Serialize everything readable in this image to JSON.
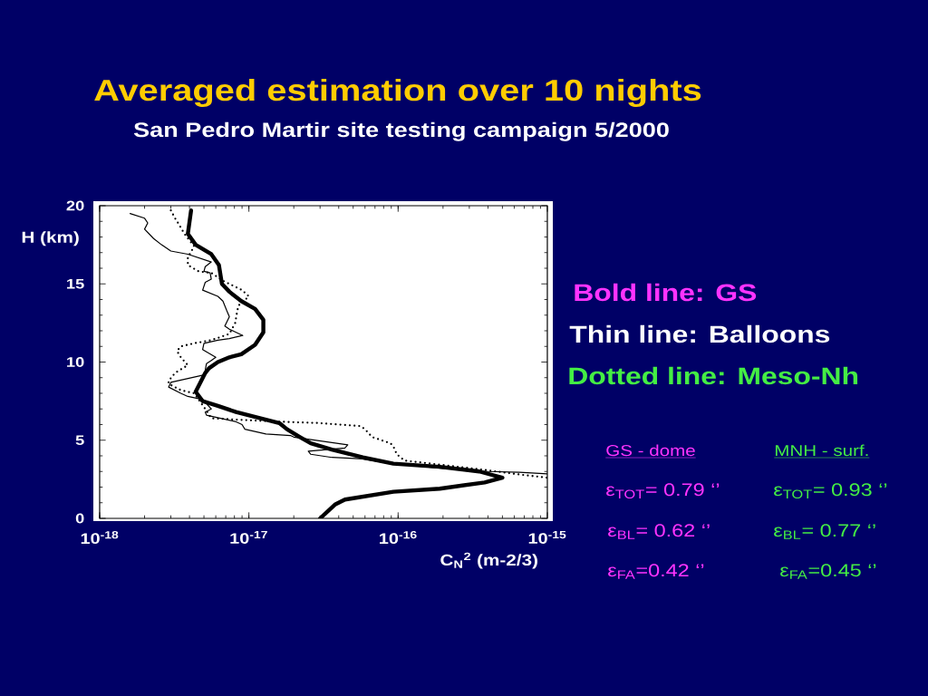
{
  "chart_data": {
    "type": "line",
    "title": "Averaged estimation over 10 nights",
    "subtitle": "San Pedro Martir  site testing campaign  5/2000",
    "xlabel": "C$_{N}$$^{2}$  (m-2/3)",
    "ylabel": "H (km)",
    "log": "x",
    "marker": "none",
    "xlim": [
      1e-18,
      1e-15
    ],
    "ylim": [
      0,
      20
    ],
    "xticks": [
      {
        "value": 1e-18,
        "label": "10$^{-18}$"
      },
      {
        "value": 1e-17,
        "label": "10$^{-17}$"
      },
      {
        "value": 1e-16,
        "label": "10$^{-16}$"
      },
      {
        "value": 1e-15,
        "label": "10$^{-15}$"
      }
    ],
    "yticks": [
      0,
      5,
      10,
      15,
      20
    ],
    "series": [
      {
        "color": "#000000",
        "line_style": "solid",
        "x": [
          4.1e-18,
          3.9e-18,
          4.4e-18,
          5.6e-18,
          6.3e-18,
          6.6e-18,
          7.4e-18,
          8.9e-18,
          1.1e-17,
          1.25e-17,
          1.25e-17,
          1.1e-17,
          8.9e-18,
          7.4e-18,
          6.2e-18,
          5.4e-18,
          5.1e-18,
          4.4e-18,
          4.9e-18,
          6.2e-18,
          8.2e-18,
          1.2e-17,
          1.6e-17,
          1.8e-17,
          2.2e-17,
          2.6e-17,
          3.6e-17,
          5.8e-17,
          9.3e-17,
          1.9e-16,
          3.5e-16,
          5e-16,
          3.8e-16,
          1.9e-16,
          9.3e-17,
          4.4e-17,
          3.8e-17,
          3e-17
        ],
        "values": [
          19.7,
          18.2,
          17.5,
          16.9,
          16.2,
          15.0,
          14.5,
          13.9,
          13.4,
          12.7,
          11.9,
          11.1,
          10.5,
          10.3,
          10.0,
          9.6,
          9.3,
          8.1,
          7.5,
          7.2,
          6.8,
          6.4,
          6.1,
          5.7,
          5.2,
          4.8,
          4.4,
          3.9,
          3.5,
          3.3,
          3.0,
          2.6,
          2.3,
          1.9,
          1.7,
          1.2,
          0.9,
          0
        ]
      },
      {
        "color": "#000000",
        "line_style": "solid",
        "x": [
          1.6e-18,
          2e-18,
          2.1e-18,
          2e-18,
          2.3e-18,
          2.6e-18,
          3e-18,
          3.9e-18,
          5.6e-18,
          5.1e-18,
          5e-18,
          5.5e-18,
          5.6e-18,
          5.1e-18,
          4.9e-18,
          6.2e-18,
          6.7e-18,
          7.1e-18,
          7.4e-18,
          6.9e-18,
          7.4e-18,
          9.1e-18,
          7.4e-18,
          6.2e-18,
          5e-18,
          4.9e-18,
          6e-18,
          5.6e-18,
          5.2e-18,
          5.1e-18,
          5.1e-18,
          3e-18,
          2.9e-18,
          3.5e-18,
          3.9e-18,
          4.9e-18,
          5.6e-18,
          5.1e-18,
          5.2e-18,
          8.1e-18,
          9e-18,
          9.4e-18,
          1.3e-17,
          1.9e-17,
          2e-17,
          4.6e-17,
          4.4e-17,
          2.5e-17,
          2.6e-17,
          3.6e-17,
          5.8e-17,
          9e-17,
          2e-16,
          4e-16,
          6.5e-16,
          1e-15
        ],
        "values": [
          19.5,
          19.2,
          18.9,
          18.5,
          17.9,
          17.5,
          17.1,
          16.9,
          16.4,
          16.1,
          15.8,
          15.7,
          15.3,
          15.1,
          14.6,
          14.2,
          13.9,
          13.3,
          12.9,
          12.3,
          12.1,
          11.7,
          11.5,
          11.4,
          11.2,
          10.8,
          10.3,
          10.1,
          9.9,
          9.5,
          9.2,
          8.7,
          8.4,
          8.0,
          7.8,
          7.6,
          7.0,
          6.8,
          6.6,
          6.2,
          6.0,
          5.7,
          5.4,
          5.3,
          5.2,
          4.7,
          4.5,
          4.3,
          4.1,
          3.9,
          3.8,
          3.5,
          3.2,
          3.0,
          2.95,
          2.85
        ]
      },
      {
        "color": "#000000",
        "line_style": "dotted",
        "x": [
          3e-18,
          3.2e-18,
          3.4e-18,
          3.7e-18,
          4.3e-18,
          3.9e-18,
          3.9e-18,
          4.6e-18,
          5.6e-18,
          6.7e-18,
          9e-18,
          1e-17,
          8.5e-18,
          8.3e-18,
          8.1e-18,
          7.4e-18,
          5.6e-18,
          4.3e-18,
          3.5e-18,
          3.3e-18,
          3.5e-18,
          3.9e-18,
          3.2e-18,
          2.9e-18,
          2.9e-18,
          3.5e-18,
          4.3e-18,
          5.1e-18,
          5.6e-18,
          1.45e-17,
          2.9e-17,
          5.6e-17,
          6e-17,
          6.7e-17,
          8.9e-17,
          9.3e-17,
          9.8e-17,
          1.1e-16,
          3.8e-16,
          6.6e-16,
          1e-15
        ],
        "values": [
          19.7,
          19.2,
          18.8,
          18.2,
          17.4,
          16.7,
          16.2,
          15.8,
          15.7,
          15.2,
          14.6,
          14.2,
          13.6,
          13.1,
          12.5,
          11.8,
          11.4,
          11.2,
          11.0,
          10.7,
          10.3,
          9.8,
          9.3,
          8.8,
          8.6,
          8.2,
          8.0,
          7.0,
          6.4,
          6.2,
          6.1,
          5.9,
          5.7,
          5.2,
          4.8,
          4.6,
          4.1,
          3.7,
          3.1,
          2.8,
          2.6
        ]
      }
    ],
    "annotations": [
      "Bold line: GS",
      "Thin  line: Balloons",
      "Dotted line: Meso-Nh",
      "GS - dome",
      "MNH - surf.",
      "ε$_{TOT}$= 0.79 ‘’",
      "ε$_{TOT}$= 0.93 ‘’",
      "ε$_{BL}$= 0.62 ‘’",
      "ε$_{BL}$= 0.77 ‘’",
      "ε$_{FA}$=0.42 ‘’",
      "ε$_{FA}$=0.45 ‘’"
    ]
  }
}
